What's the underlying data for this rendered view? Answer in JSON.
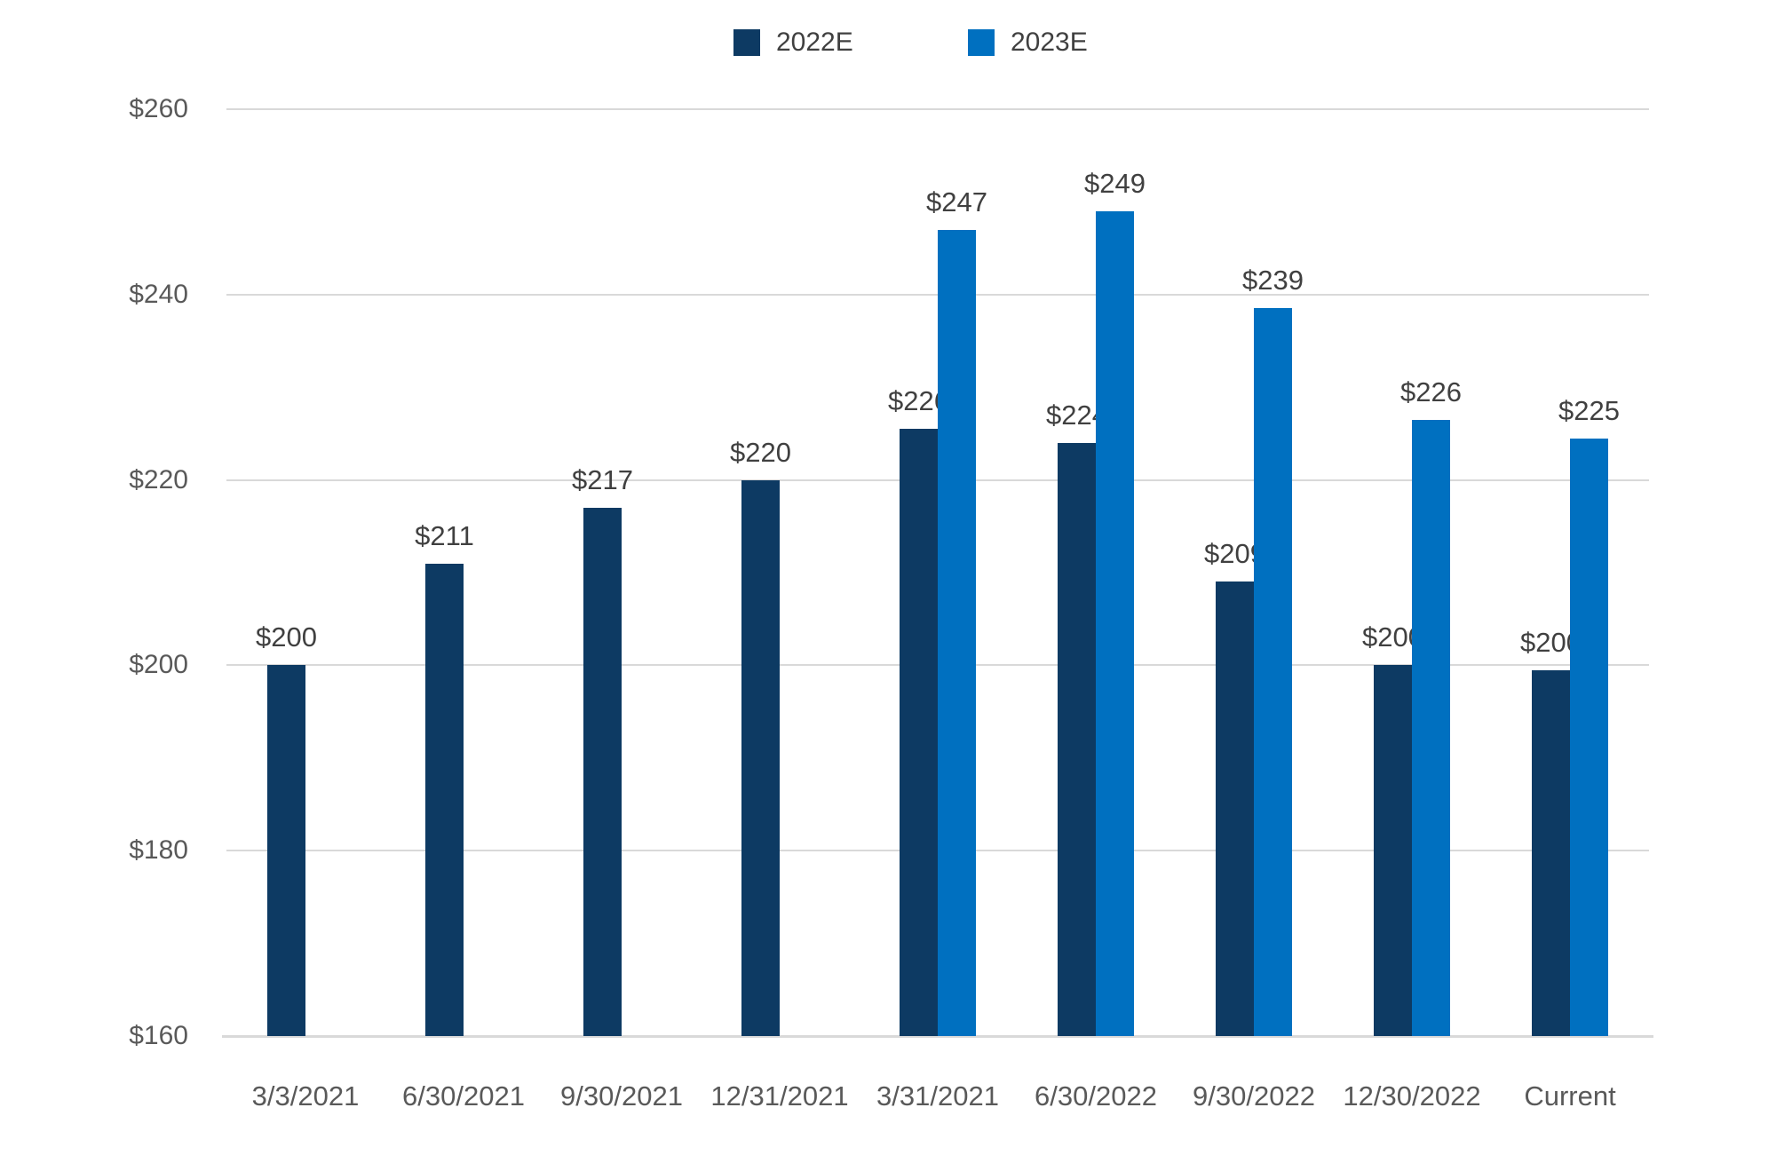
{
  "chart_data": {
    "type": "bar",
    "title": "",
    "categories": [
      "3/3/2021",
      "6/30/2021",
      "9/30/2021",
      "12/31/2021",
      "3/31/2021",
      "6/30/2022",
      "9/30/2022",
      "12/30/2022",
      "Current"
    ],
    "series": [
      {
        "name": "2022E",
        "color": "#0d3a63",
        "values": [
          200,
          211,
          217,
          220,
          225.5,
          224,
          209,
          200,
          199.5
        ],
        "labels": [
          "$200",
          "$211",
          "$217",
          "$220",
          "$226",
          "$224",
          "$209",
          "$200",
          "$200"
        ]
      },
      {
        "name": "2023E",
        "color": "#0070c0",
        "values": [
          null,
          null,
          null,
          null,
          247,
          249,
          238.5,
          226.5,
          224.5
        ],
        "labels": [
          null,
          null,
          null,
          null,
          "$247",
          "$249",
          "$239",
          "$226",
          "$225"
        ]
      }
    ],
    "y_axis": {
      "min": 160,
      "max": 260,
      "tick_interval": 20,
      "tick_labels": [
        "$260",
        "$240",
        "$220",
        "$200",
        "$180",
        "$160"
      ]
    },
    "legend_position": "top",
    "grid": "horizontal"
  },
  "styles": {
    "background": "#ffffff",
    "grid_color": "#d9d9d9",
    "axis_line_color": "#d9d9d9",
    "y_tick_text_color": "#595959",
    "x_tick_text_color": "#595959",
    "data_label_color": "#404040",
    "legend_text_color": "#404040"
  }
}
